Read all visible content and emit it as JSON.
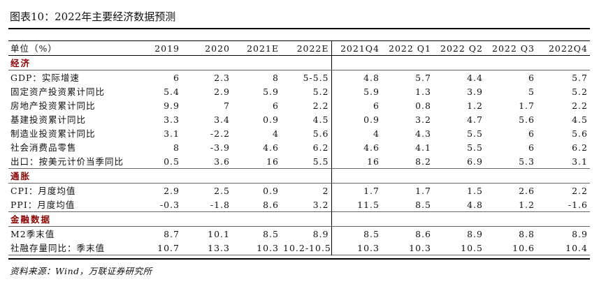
{
  "title": "图表10：2022年主要经济数据预测",
  "source": "资料来源：Wind，万联证券研究所",
  "table": {
    "columns": [
      "单位（%）",
      "2019",
      "2020",
      "2021E",
      "2022E",
      "2021Q4",
      "2022 Q1",
      "2022 Q2",
      "2022 Q3",
      "2022Q4"
    ],
    "sections": [
      {
        "name": "经济",
        "rows": [
          {
            "label": "GDP：实际增速",
            "values": [
              "6",
              "2.3",
              "8",
              "5-5.5",
              "4.8",
              "5.7",
              "4.4",
              "6",
              "5.7"
            ]
          },
          {
            "label": "固定资产投资累计同比",
            "values": [
              "5.4",
              "2.9",
              "5.9",
              "5.2",
              "5.9",
              "1.3",
              "3.9",
              "5",
              "5.2"
            ]
          },
          {
            "label": "房地产投资累计同比",
            "values": [
              "9.9",
              "7",
              "6",
              "2.2",
              "6",
              "0.8",
              "1.2",
              "1.7",
              "2.2"
            ]
          },
          {
            "label": "基建投资累计同比",
            "values": [
              "3.3",
              "3.4",
              "0.9",
              "4.5",
              "0.9",
              "3.2",
              "4.7",
              "5.6",
              "4.5"
            ]
          },
          {
            "label": "制造业投资累计同比",
            "values": [
              "3.1",
              "-2.2",
              "4",
              "5.6",
              "4",
              "4.3",
              "5.5",
              "6",
              "5.6"
            ]
          },
          {
            "label": "社会消费品零售",
            "values": [
              "8",
              "-3.9",
              "4.6",
              "6.2",
              "4.6",
              "4.1",
              "5.5",
              "6",
              "6.2"
            ]
          },
          {
            "label": "出口：按美元计价当季同比",
            "values": [
              "0.5",
              "3.6",
              "16",
              "5.5",
              "16",
              "8.2",
              "6.9",
              "5.3",
              "3.1"
            ]
          }
        ]
      },
      {
        "name": "通胀",
        "rows": [
          {
            "label": "CPI：月度均值",
            "values": [
              "2.9",
              "2.5",
              "0.9",
              "2",
              "1.7",
              "1.7",
              "1.5",
              "2.6",
              "2.2"
            ]
          },
          {
            "label": "PPI：月度均值",
            "values": [
              "-0.3",
              "-1.8",
              "8.6",
              "3.2",
              "11.5",
              "8.5",
              "4.8",
              "1.2",
              "-1.6"
            ]
          }
        ]
      },
      {
        "name": "金融数据",
        "rows": [
          {
            "label": "M2季末值",
            "values": [
              "8.7",
              "10.1",
              "8.5",
              "8.9",
              "8.5",
              "8.6",
              "8.9",
              "8.8",
              "8.9"
            ]
          },
          {
            "label": "社融存量同比：季末值",
            "values": [
              "10.7",
              "13.3",
              "10.3",
              "10.2-10.5",
              "10.3",
              "10.3",
              "10.5",
              "10.6",
              "10.4"
            ]
          }
        ]
      }
    ]
  }
}
